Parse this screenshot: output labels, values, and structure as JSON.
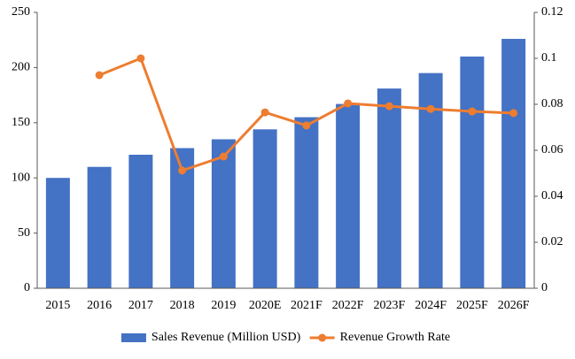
{
  "chart_data": {
    "type": "bar-line",
    "categories": [
      "2015",
      "2016",
      "2017",
      "2018",
      "2019",
      "2020E",
      "2021F",
      "2022F",
      "2023F",
      "2024F",
      "2025F",
      "2026F"
    ],
    "series": [
      {
        "name": "Sales Revenue (Million USD)",
        "type": "bar",
        "color": "#4472c4",
        "values": [
          100,
          110,
          121,
          127,
          135,
          144,
          155,
          167,
          181,
          195,
          210,
          226
        ]
      },
      {
        "name": "Revenue Growth Rate",
        "type": "line",
        "axis": "y2",
        "color": "#ed7d31",
        "values": [
          null,
          0.0927,
          0.1,
          0.0512,
          0.0573,
          0.0765,
          0.0708,
          0.0804,
          0.0792,
          0.078,
          0.0769,
          0.0762
        ]
      }
    ],
    "ylim": [
      0,
      250
    ],
    "yticks": [
      0,
      50,
      100,
      150,
      200,
      250
    ],
    "y2lim": [
      0,
      0.12
    ],
    "y2ticks": [
      0,
      0.02,
      0.04,
      0.06,
      0.08,
      0.1,
      0.12
    ],
    "grid": false,
    "legend": "bottom"
  }
}
